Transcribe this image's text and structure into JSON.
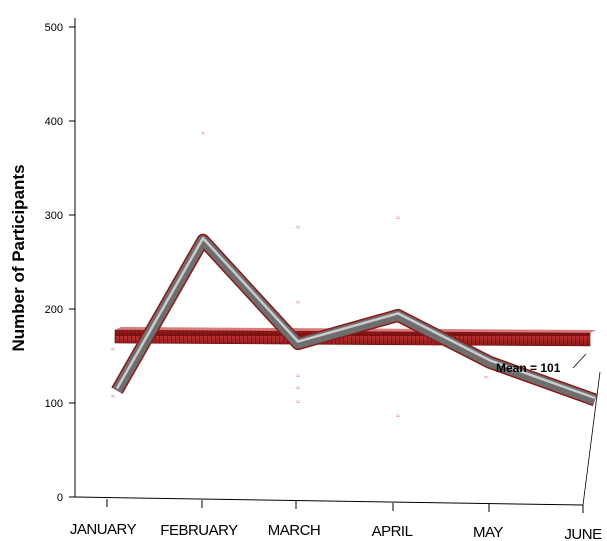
{
  "chart_data": {
    "type": "line",
    "title": "",
    "xlabel": "",
    "ylabel": "Number of Participants",
    "categories": [
      "JANUARY",
      "FEBRUARY",
      "MARCH",
      "APRIL",
      "MAY",
      "JUNE"
    ],
    "ylim": [
      0,
      500
    ],
    "yticks": [
      0,
      100,
      200,
      300,
      400,
      500
    ],
    "series": [
      {
        "values": [
          110,
          270,
          160,
          190,
          140,
          100
        ]
      }
    ],
    "mean": {
      "value": 101,
      "label": "Mean = 101"
    },
    "points": [
      {
        "category": "JANUARY",
        "values": [
          108,
          158
        ]
      },
      {
        "category": "FEBRUARY",
        "values": [
          388,
          268
        ]
      },
      {
        "category": "MARCH",
        "values": [
          288,
          208,
          130,
          117,
          102
        ]
      },
      {
        "category": "APRIL",
        "values": [
          298,
          198,
          87
        ]
      },
      {
        "category": "MAY",
        "values": [
          128
        ]
      }
    ],
    "grid": false,
    "legend": "none",
    "colors": {
      "tube": "#6e6e6e",
      "tube_edge": "#8b1a1a",
      "mean_bar": "#9b1c1c",
      "marker": "#e06a6a"
    }
  }
}
